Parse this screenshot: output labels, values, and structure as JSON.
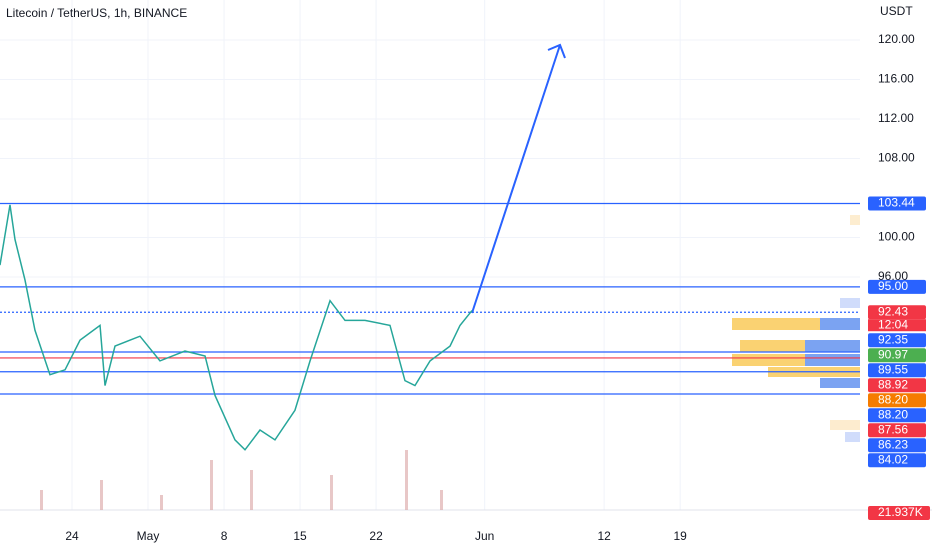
{
  "chart_data": {
    "type": "line",
    "title": "Litecoin / TetherUS, 1h, BINANCE",
    "y_axis_label": "USDT",
    "color": "#26a69a",
    "x": [
      0.37,
      1.29,
      1.75,
      2.67,
      3.59,
      4.97,
      6.36,
      7.74,
      9.58,
      10.04,
      10.96,
      13.26,
      15.1,
      17.4,
      19.25,
      20.17,
      22.01,
      22.93,
      24.31,
      25.69,
      27.53,
      28.92,
      30.76,
      32.14,
      33.98,
      36.28,
      37.66,
      38.58,
      39.97,
      41.81,
      42.73,
      43.83
    ],
    "values": [
      97.2,
      103.3,
      99.8,
      95.7,
      90.6,
      86.1,
      86.6,
      89.6,
      91.1,
      85,
      89,
      90,
      87.5,
      88.5,
      88,
      84,
      79.5,
      78.5,
      80.5,
      79.5,
      82.5,
      87.5,
      93.6,
      91.6,
      91.6,
      91.1,
      85.5,
      85,
      87.5,
      89,
      91.1,
      92.6
    ],
    "xlim": [
      0.37,
      79.56
    ],
    "ylim": [
      72.4,
      124.05
    ],
    "xticks": [
      {
        "value": 7,
        "label": "24"
      },
      {
        "value": 14,
        "label": "May"
      },
      {
        "value": 21,
        "label": "8"
      },
      {
        "value": 28,
        "label": "15"
      },
      {
        "value": 35,
        "label": "22"
      },
      {
        "value": 45,
        "label": "Jun"
      },
      {
        "value": 56,
        "label": "12"
      },
      {
        "value": 63,
        "label": "19"
      }
    ],
    "yticks": [
      {
        "value": 96,
        "label": "96.00"
      },
      {
        "value": 100,
        "label": "100.00"
      },
      {
        "value": 108,
        "label": "108.00"
      },
      {
        "value": 112,
        "label": "112.00"
      },
      {
        "value": 116,
        "label": "116.00"
      },
      {
        "value": 120,
        "label": "120.00"
      }
    ],
    "grid": true,
    "levels": [
      {
        "value": 103.44,
        "color": "#2962ff"
      },
      {
        "value": 95,
        "color": "#2962ff"
      },
      {
        "value": 92.43,
        "color": "#2962ff",
        "dotted": true
      },
      {
        "value": 88.4,
        "color": "#2962ff"
      },
      {
        "value": 87.8,
        "color": "#f23645"
      },
      {
        "value": 86.4,
        "color": "#2962ff"
      },
      {
        "value": 84.15,
        "color": "#2962ff"
      }
    ],
    "price_labels": [
      {
        "value": 103.44,
        "label": "103.44",
        "color": "#2962ff"
      },
      {
        "value": 95,
        "label": "95.00",
        "color": "#2962ff"
      },
      {
        "value": 92.43,
        "label": "92.43",
        "color": "#f23645",
        "countdown": "12:04"
      },
      {
        "value": 92.35,
        "label": "92.35",
        "color": "#2962ff"
      },
      {
        "value": 90.97,
        "label": "90.97",
        "color": "#4caf50"
      },
      {
        "value": 89.55,
        "label": "89.55",
        "color": "#2962ff"
      },
      {
        "value": 88.92,
        "label": "88.92",
        "color": "#f23645"
      },
      {
        "value": 88.2,
        "label": "88.20",
        "color": "#f57c00"
      },
      {
        "value": 88.2,
        "label": "88.20",
        "color": "#2962ff"
      },
      {
        "value": 87.56,
        "label": "87.56",
        "color": "#f23645"
      },
      {
        "value": 86.23,
        "label": "86.23",
        "color": "#2962ff"
      },
      {
        "value": 84.02,
        "label": "84.02",
        "color": "#2962ff"
      }
    ],
    "volume_label": "21.937K"
  }
}
